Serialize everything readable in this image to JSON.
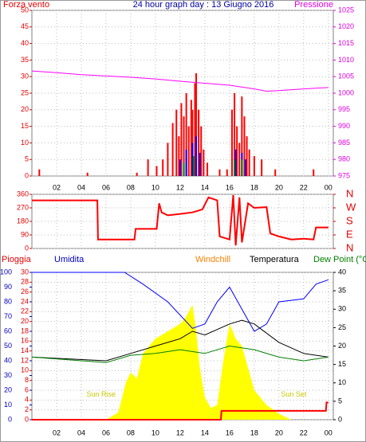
{
  "chart_data": [
    {
      "type": "bar",
      "title": "24 hour graph day : 13 Giugno 2016",
      "ylabel": "Forza vento",
      "y2label": "Pressione",
      "xlim": [
        0,
        24.4
      ],
      "xticks": [
        {
          "value": 2,
          "label": "02"
        },
        {
          "value": 4,
          "label": "04"
        },
        {
          "value": 6,
          "label": "06"
        },
        {
          "value": 8,
          "label": "08"
        },
        10,
        12,
        14,
        16,
        18,
        20,
        22,
        {
          "value": 24,
          "label": "00"
        }
      ],
      "ylim": [
        0,
        50
      ],
      "yticks": [
        0,
        5,
        10,
        15,
        20,
        25,
        30,
        35,
        40,
        45,
        50
      ],
      "y2lim": [
        975,
        1025
      ],
      "y2ticks": [
        975,
        980,
        985,
        990,
        995,
        1000,
        1005,
        1010,
        1015,
        1020,
        1025
      ],
      "grid": true,
      "series": [
        {
          "type": "bar",
          "color": "#ff0000",
          "x": [
            0.6,
            4.5,
            8.5,
            9.4,
            10.1,
            10.6,
            11,
            11.4,
            11.7,
            11.9,
            12.1,
            12.3,
            12.5,
            12.7,
            12.9,
            13,
            13.2,
            13.3,
            13.5,
            13.7,
            13.9,
            14.2,
            15.2,
            15.8,
            16.2,
            16.4,
            16.6,
            16.8,
            17,
            17.2,
            17.4,
            17.6,
            18,
            18.6,
            19.7,
            22.8
          ],
          "values": [
            2,
            1,
            1,
            5,
            3,
            5,
            10,
            16,
            20,
            12,
            22,
            18,
            25,
            15,
            23,
            20,
            28,
            31,
            20,
            15,
            8,
            4,
            2,
            2,
            20,
            25,
            15,
            10,
            24,
            18,
            12,
            8,
            6,
            5,
            2,
            2
          ]
        },
        {
          "type": "bar",
          "color": "#0000ff",
          "x": [
            12,
            12.5,
            13,
            13.3,
            13.6,
            16.5,
            17,
            17.3
          ],
          "values": [
            5,
            8,
            10,
            12,
            7,
            8,
            7,
            5
          ]
        },
        {
          "type": "bar",
          "color": "#008000",
          "x": [
            12.3,
            13.1,
            16.4,
            17
          ],
          "values": [
            4,
            6,
            5,
            5
          ]
        },
        {
          "type": "line",
          "axis": "y2",
          "color": "#ff00ff",
          "x": [
            0,
            2,
            4,
            6,
            8,
            10,
            12,
            14,
            16,
            18,
            19,
            20,
            22,
            24
          ],
          "values": [
            1006.7,
            1006.2,
            1005.6,
            1005.2,
            1004.8,
            1004.3,
            1003.6,
            1003,
            1002.4,
            1001.3,
            1000.6,
            1000.8,
            1001.3,
            1001.7
          ]
        }
      ]
    },
    {
      "type": "line",
      "xlim": [
        0,
        24.4
      ],
      "xticks": [
        {
          "value": 2,
          "label": "02"
        },
        {
          "value": 4,
          "label": "04"
        },
        {
          "value": 6,
          "label": "06"
        },
        {
          "value": 8,
          "label": "08"
        },
        10,
        12,
        14,
        16,
        18,
        20,
        22,
        {
          "value": 24,
          "label": "00"
        }
      ],
      "ylim": [
        0,
        360
      ],
      "yticks": [
        0,
        90,
        180,
        270,
        360
      ],
      "y2lim": [
        0,
        360
      ],
      "y2ticks": [
        {
          "value": 0,
          "label": "N"
        },
        {
          "value": 90,
          "label": "E"
        },
        {
          "value": 180,
          "label": "S"
        },
        {
          "value": 270,
          "label": "W"
        },
        {
          "value": 360,
          "label": "N"
        }
      ],
      "grid": true,
      "series": [
        {
          "color": "#ff0000",
          "x": [
            0,
            5.3,
            5.35,
            8.3,
            8.4,
            10.1,
            10.3,
            10.5,
            11,
            12,
            13,
            13.8,
            14.3,
            15,
            15.2,
            16,
            16.3,
            16.5,
            16.8,
            17,
            17.5,
            18,
            19,
            19.3,
            20,
            21,
            22,
            22.8,
            23,
            24
          ],
          "values": [
            320,
            320,
            60,
            60,
            130,
            130,
            300,
            240,
            220,
            230,
            240,
            260,
            340,
            320,
            80,
            60,
            355,
            20,
            340,
            40,
            300,
            270,
            275,
            100,
            80,
            60,
            65,
            60,
            140,
            140
          ]
        }
      ]
    },
    {
      "type": "line",
      "xlim": [
        0,
        24.4
      ],
      "xticks": [
        {
          "value": 2,
          "label": "02"
        },
        {
          "value": 4,
          "label": "04"
        },
        {
          "value": 6,
          "label": "06"
        },
        {
          "value": 8,
          "label": "08"
        },
        10,
        12,
        14,
        16,
        18,
        20,
        22,
        {
          "value": 24,
          "label": "00"
        }
      ],
      "ylabel": "Pioggia",
      "y3label": "Umidita",
      "header_labels": [
        {
          "text": "Windchill",
          "color": "#ff8000"
        },
        {
          "text": "Temperatura",
          "color": "#000000"
        },
        {
          "text": "Dew Point (°C",
          "color": "#008000"
        }
      ],
      "ylim": [
        0,
        30
      ],
      "yticks": [
        0,
        2,
        4,
        6,
        8,
        10,
        12,
        14,
        16,
        18,
        20,
        22,
        24,
        26,
        28,
        30
      ],
      "y3lim": [
        0,
        100
      ],
      "y3ticks": [
        0,
        10,
        20,
        30,
        40,
        50,
        60,
        70,
        80,
        90,
        100
      ],
      "y2lim": [
        0,
        40
      ],
      "y2ticks": [
        0,
        5,
        10,
        15,
        20,
        25,
        30,
        35,
        40
      ],
      "grid": true,
      "annotations": [
        {
          "text": "Sun Rise",
          "x": 5.6,
          "y": 17
        },
        {
          "text": "Sun Set",
          "x": 21.2,
          "y": 17
        }
      ],
      "series": [
        {
          "type": "area",
          "axis": "y3",
          "color": "#ffff00",
          "x": [
            6,
            7,
            7.6,
            8,
            8.5,
            9,
            10,
            11,
            12,
            12.5,
            13,
            13.3,
            13.6,
            14,
            14.5,
            15,
            15.5,
            16,
            16.5,
            17,
            17.5,
            18,
            19,
            20,
            21
          ],
          "values": [
            0,
            5,
            25,
            32,
            28,
            45,
            55,
            60,
            65,
            70,
            78,
            60,
            35,
            15,
            8,
            10,
            40,
            65,
            55,
            50,
            35,
            20,
            10,
            4,
            0
          ]
        },
        {
          "type": "line",
          "axis": "y3",
          "color": "#0000ff",
          "x": [
            0,
            7.5,
            9,
            11,
            13,
            14,
            15,
            16,
            17,
            18,
            19,
            20,
            22,
            23,
            24
          ],
          "values": [
            100,
            100,
            92,
            80,
            62,
            65,
            80,
            90,
            75,
            60,
            65,
            80,
            82,
            92,
            95
          ]
        },
        {
          "type": "line",
          "axis": "y2",
          "name": "Temperatura",
          "color": "#000000",
          "x": [
            0,
            6,
            8,
            10,
            12,
            13,
            14,
            16,
            17,
            18,
            20,
            22,
            24
          ],
          "values": [
            17,
            16,
            18,
            20,
            22,
            24,
            23,
            26,
            27,
            26,
            21,
            18,
            17
          ]
        },
        {
          "type": "line",
          "axis": "y2",
          "name": "Dew Point (°C",
          "color": "#008000",
          "x": [
            0,
            6,
            8,
            10,
            12,
            14,
            16,
            18,
            20,
            22,
            24
          ],
          "values": [
            17,
            15.5,
            17.5,
            18,
            19,
            18,
            20,
            19,
            17,
            16,
            17
          ]
        },
        {
          "type": "line",
          "axis": "y",
          "color": "#ff0000",
          "x": [
            0,
            15.3,
            15.35,
            23.8,
            23.85,
            24
          ],
          "values": [
            0,
            0,
            1.8,
            1.8,
            3.5,
            3.5
          ]
        }
      ]
    }
  ]
}
